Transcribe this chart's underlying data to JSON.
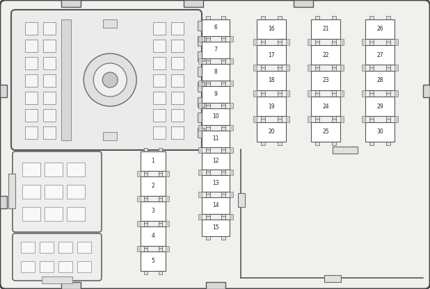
{
  "fig_width": 6.18,
  "fig_height": 4.16,
  "dpi": 100,
  "bg_color": "#f0f0ed",
  "lc": "#444444",
  "fc_white": "#ffffff",
  "fc_light": "#eeeeee",
  "fc_med": "#d8d8d8",
  "fuse_font_size": 5.5,
  "col1_fuses": [
    6,
    7,
    8,
    9,
    10,
    11,
    12,
    13,
    14,
    15
  ],
  "col2_fuses": [
    16,
    17,
    18,
    19,
    20
  ],
  "col3_fuses": [
    21,
    22,
    23,
    24,
    25
  ],
  "col4_fuses": [
    26,
    27,
    28,
    29,
    30
  ],
  "small_fuses": [
    1,
    2,
    3,
    4,
    5
  ]
}
